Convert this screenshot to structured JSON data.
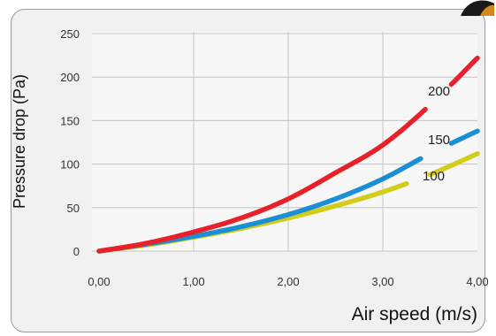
{
  "chart_data": {
    "type": "line",
    "title": "",
    "xlabel": "Air speed  (m/s)",
    "ylabel": "Pressure drop (Pa)",
    "xlim": [
      0,
      4
    ],
    "ylim": [
      0,
      250
    ],
    "x_ticks": [
      "0,00",
      "1,00",
      "2,00",
      "3,00",
      "4,00"
    ],
    "y_ticks": [
      "0",
      "50",
      "100",
      "150",
      "200",
      "250"
    ],
    "grid": true,
    "legend": "inline labels near line ends",
    "series": [
      {
        "name": "200",
        "color": "#e8202a",
        "x": [
          0,
          0.5,
          1.0,
          1.5,
          2.0,
          2.5,
          3.0,
          3.5,
          4.0
        ],
        "y": [
          0,
          9,
          22,
          38,
          60,
          90,
          122,
          168,
          222
        ]
      },
      {
        "name": "150",
        "color": "#1a8fd6",
        "x": [
          0,
          0.5,
          1.0,
          1.5,
          2.0,
          2.5,
          3.0,
          3.5,
          4.0
        ],
        "y": [
          0,
          8,
          17,
          28,
          42,
          60,
          83,
          112,
          138
        ]
      },
      {
        "name": "100",
        "color": "#d4cc1a",
        "x": [
          0,
          0.5,
          1.0,
          1.5,
          2.0,
          2.5,
          3.0,
          3.5,
          4.0
        ],
        "y": [
          0,
          7,
          16,
          26,
          38,
          52,
          68,
          88,
          112
        ]
      }
    ]
  }
}
